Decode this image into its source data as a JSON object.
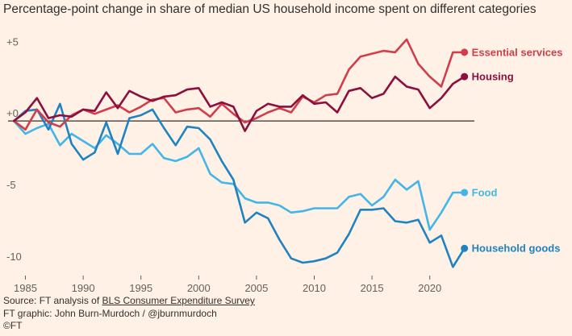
{
  "chart_data": {
    "type": "line",
    "title": "Percentage-point change in share of median US household income spent on different categories",
    "xlabel": "",
    "ylabel": "",
    "xlim": [
      1983.5,
      2024
    ],
    "ylim": [
      -10.8,
      6.2
    ],
    "x_ticks": [
      1985,
      1990,
      1995,
      2000,
      2005,
      2010,
      2015,
      2020
    ],
    "x_tick_labels": [
      "1985",
      "1990",
      "1995",
      "2000",
      "2005",
      "2010",
      "2015",
      "2020"
    ],
    "y_ticks": [
      5,
      0,
      -5,
      -10
    ],
    "y_tick_labels": [
      "+5",
      "+0",
      "-5",
      "-10"
    ],
    "zero_line": true,
    "grid": false,
    "legend": "direct labels at line ends (right)",
    "x": [
      1984,
      1985,
      1986,
      1987,
      1988,
      1989,
      1990,
      1991,
      1992,
      1993,
      1994,
      1995,
      1996,
      1997,
      1998,
      1999,
      2000,
      2001,
      2002,
      2003,
      2004,
      2005,
      2006,
      2007,
      2008,
      2009,
      2010,
      2011,
      2012,
      2013,
      2014,
      2015,
      2016,
      2017,
      2018,
      2019,
      2020,
      2021,
      2022,
      2023
    ],
    "series": [
      {
        "name": "Essential services",
        "color": "#d13d4b",
        "values": [
          0,
          -0.6,
          0.8,
          -0.1,
          -0.4,
          0.4,
          0.8,
          0.5,
          0.8,
          1.1,
          0.6,
          1.0,
          1.5,
          1.6,
          0.6,
          0.8,
          0.9,
          0.3,
          1.2,
          0.5,
          -0.1,
          0.2,
          0.6,
          0.9,
          0.6,
          1.7,
          1.3,
          1.8,
          1.9,
          3.6,
          4.5,
          4.7,
          4.9,
          4.8,
          5.7,
          4.0,
          3.1,
          2.4,
          4.8,
          4.8
        ]
      },
      {
        "name": "Housing",
        "color": "#8c0f3d",
        "values": [
          0,
          0.6,
          1.6,
          0.2,
          0.4,
          0.3,
          0.8,
          0.7,
          2.0,
          0.9,
          2.1,
          1.7,
          1.4,
          1.7,
          1.8,
          2.2,
          2.3,
          1.0,
          1.3,
          1.0,
          -0.7,
          0.7,
          1.2,
          1.0,
          1.0,
          1.8,
          1.2,
          1.3,
          0.6,
          2.1,
          2.3,
          1.6,
          1.9,
          3.1,
          2.4,
          2.2,
          0.9,
          1.6,
          2.6,
          3.1
        ]
      },
      {
        "name": "Food",
        "color": "#42b6e6",
        "values": [
          0,
          -0.9,
          -0.5,
          -0.2,
          -1.7,
          -0.9,
          -1.4,
          -1.9,
          -1.0,
          -1.6,
          -2.3,
          -2.3,
          -1.6,
          -2.6,
          -2.8,
          -2.5,
          -1.9,
          -3.7,
          -4.3,
          -4.4,
          -5.4,
          -5.7,
          -5.7,
          -5.9,
          -6.4,
          -6.3,
          -6.1,
          -6.1,
          -6.1,
          -5.3,
          -5.1,
          -5.9,
          -5.3,
          -4.1,
          -4.8,
          -4.2,
          -7.6,
          -6.4,
          -5.0,
          -5.0
        ]
      },
      {
        "name": "Household goods",
        "color": "#1f83c2",
        "values": [
          0,
          0.7,
          0.8,
          -0.6,
          1.2,
          -1.6,
          -2.7,
          -2.2,
          -0.1,
          -2.3,
          0.2,
          0.4,
          0.8,
          -0.5,
          -1.7,
          -0.4,
          -0.5,
          -1.3,
          -2.8,
          -4.1,
          -7.1,
          -6.4,
          -6.8,
          -8.3,
          -9.6,
          -9.9,
          -9.8,
          -9.6,
          -9.2,
          -7.9,
          -6.2,
          -6.2,
          -6.1,
          -7.0,
          -7.1,
          -6.9,
          -8.5,
          -8.0,
          -10.2,
          -8.9
        ]
      }
    ]
  },
  "footer": {
    "source_prefix": "Source: FT analysis of ",
    "source_link": "BLS Consumer Expenditure Survey",
    "graphic_credit": "FT graphic: John Burn-Murdoch / @jburnmurdoch",
    "copyright": "©FT"
  }
}
